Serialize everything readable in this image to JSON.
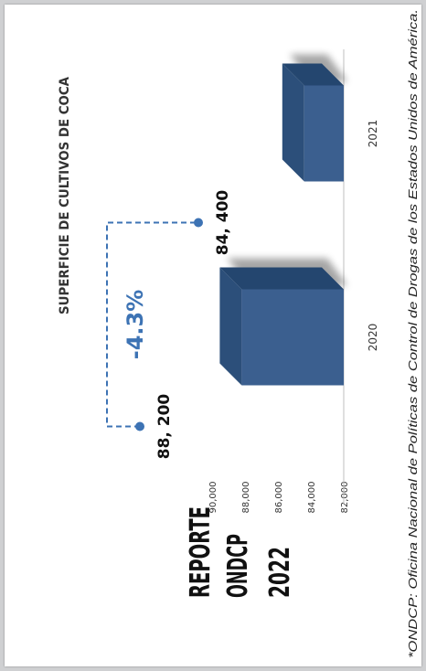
{
  "chart_data": {
    "type": "bar",
    "orientation": "rotated-90-ccw",
    "title": "SUPERFICIE DE CULTIVOS DE COCA",
    "categories": [
      "2020",
      "2021"
    ],
    "values": [
      88200,
      84400
    ],
    "value_labels": [
      "88, 200",
      "84, 400"
    ],
    "ylim": [
      82000,
      90000
    ],
    "yticks": [
      "82,000",
      "84,000",
      "86,000",
      "88,000",
      "90,000"
    ],
    "bar_color": "#3b5f8f",
    "annotation": {
      "text": "-4.3%",
      "color": "#3d73b4"
    }
  },
  "report": {
    "line1": "REPORTE",
    "line2": "ONDCP",
    "line3": "2022"
  },
  "footnote": "*ONDCP: Oficina Nacional de Políticas de Control de Drogas de los Estados Unidos de América."
}
